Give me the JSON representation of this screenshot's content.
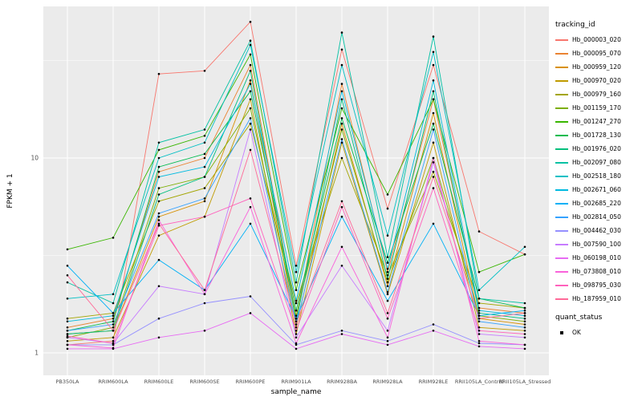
{
  "figure": {
    "background": "#FFFFFF",
    "panel_background": "#EBEBEB",
    "grid_color": "#FFFFFF",
    "tick_label_color": "#4D4D4D",
    "point_color": "#000000"
  },
  "chart_data": {
    "type": "line",
    "title": "",
    "xlabel": "sample_name",
    "ylabel": "FPKM + 1",
    "yscale": "log10",
    "ylim": [
      0.77,
      60
    ],
    "yticks": [
      1,
      10
    ],
    "ytick_labels": [
      "1",
      "10"
    ],
    "grid": true,
    "legend_position": "right",
    "legend_title": "tracking_id",
    "point_legend": {
      "title": "quant_status",
      "label": "OK"
    },
    "categories": [
      "PB350LA",
      "RRIM600LA",
      "RRIM600LE",
      "RRIM600SE",
      "RRIM600PE",
      "RRIM901LA",
      "RRIM928BA",
      "RRIM928LA",
      "RRIM928LE",
      "RRII105LA_Control",
      "RRII105LA_Stressed"
    ],
    "series": [
      {
        "name": "Hb_000003_020",
        "color": "#F8766D",
        "values": [
          1.1,
          1.15,
          27,
          28,
          50,
          2.8,
          36,
          5.5,
          30,
          4.2,
          3.2
        ]
      },
      {
        "name": "Hb_000095_070",
        "color": "#EA8331",
        "values": [
          1.35,
          1.5,
          8.5,
          10,
          30,
          1.5,
          24,
          2.6,
          20,
          1.7,
          1.6
        ]
      },
      {
        "name": "Hb_000959_120",
        "color": "#D89000",
        "values": [
          1.25,
          1.3,
          5.0,
          6.0,
          25,
          1.35,
          15,
          2.2,
          17,
          1.5,
          1.4
        ]
      },
      {
        "name": "Hb_000970_020",
        "color": "#C09B00",
        "values": [
          1.15,
          1.2,
          4.0,
          5.0,
          20,
          1.25,
          12,
          2.0,
          12,
          1.35,
          1.3
        ]
      },
      {
        "name": "Hb_000979_160",
        "color": "#A3A500",
        "values": [
          1.5,
          1.6,
          6.0,
          7.0,
          15,
          1.8,
          10,
          2.5,
          8.5,
          1.8,
          1.7
        ]
      },
      {
        "name": "Hb_001159_170",
        "color": "#7CAE00",
        "values": [
          1.2,
          1.35,
          7.0,
          8.0,
          18,
          1.55,
          14,
          2.3,
          10,
          1.55,
          1.45
        ]
      },
      {
        "name": "Hb_001247_270",
        "color": "#39B600",
        "values": [
          3.4,
          3.9,
          11,
          13,
          34,
          2.1,
          18,
          6.5,
          20,
          2.6,
          3.2
        ]
      },
      {
        "name": "Hb_001728_130",
        "color": "#00BB4E",
        "values": [
          1.3,
          1.45,
          9.0,
          10.5,
          22,
          1.65,
          16,
          2.9,
          15,
          1.9,
          1.7
        ]
      },
      {
        "name": "Hb_001976_020",
        "color": "#00BF7D",
        "values": [
          1.25,
          1.3,
          6.5,
          8.0,
          28,
          1.45,
          20,
          2.4,
          22,
          1.6,
          1.5
        ]
      },
      {
        "name": "Hb_002097_080",
        "color": "#00C1A3",
        "values": [
          2.3,
          1.8,
          12,
          14,
          40,
          2.3,
          44,
          3.1,
          42,
          1.9,
          1.8
        ]
      },
      {
        "name": "Hb_002518_180",
        "color": "#00BFC4",
        "values": [
          1.9,
          2.0,
          10,
          12,
          38,
          2.6,
          30,
          4.0,
          35,
          2.1,
          3.5
        ]
      },
      {
        "name": "Hb_002671_060",
        "color": "#00BAE0",
        "values": [
          1.45,
          1.55,
          8.0,
          9.0,
          24,
          1.85,
          22,
          2.7,
          25,
          1.65,
          1.55
        ]
      },
      {
        "name": "Hb_002685_220",
        "color": "#00B0F6",
        "values": [
          2.8,
          1.6,
          3.0,
          2.1,
          4.6,
          1.5,
          5.0,
          1.85,
          4.6,
          1.55,
          1.65
        ]
      },
      {
        "name": "Hb_002814_050",
        "color": "#35A2FF",
        "values": [
          1.3,
          1.4,
          5.2,
          6.2,
          16,
          1.4,
          12.5,
          2.05,
          14,
          1.45,
          1.35
        ]
      },
      {
        "name": "Hb_004462_030",
        "color": "#9590FF",
        "values": [
          1.1,
          1.1,
          1.5,
          1.8,
          1.95,
          1.1,
          1.3,
          1.15,
          1.4,
          1.12,
          1.1
        ]
      },
      {
        "name": "Hb_007590_100",
        "color": "#C77CFF",
        "values": [
          1.2,
          1.12,
          2.2,
          2.0,
          14,
          1.2,
          2.8,
          1.3,
          9.5,
          1.25,
          1.2
        ]
      },
      {
        "name": "Hb_060198_010",
        "color": "#E76BF3",
        "values": [
          1.05,
          1.05,
          1.2,
          1.3,
          1.6,
          1.05,
          1.25,
          1.1,
          1.3,
          1.08,
          1.05
        ]
      },
      {
        "name": "Hb_073808_010",
        "color": "#FA62DB",
        "values": [
          1.1,
          1.06,
          4.8,
          2.0,
          5.6,
          1.12,
          3.5,
          1.2,
          10,
          1.15,
          1.1
        ]
      },
      {
        "name": "Hb_098795_030",
        "color": "#FF62BC",
        "values": [
          1.22,
          1.12,
          4.5,
          5.0,
          6.2,
          1.3,
          5.6,
          1.5,
          7.0,
          1.3,
          1.25
        ]
      },
      {
        "name": "Hb_187959_010",
        "color": "#FF6A98",
        "values": [
          2.5,
          1.3,
          4.6,
          2.1,
          11,
          1.4,
          6.0,
          1.6,
          8.0,
          1.5,
          1.6
        ]
      }
    ]
  }
}
